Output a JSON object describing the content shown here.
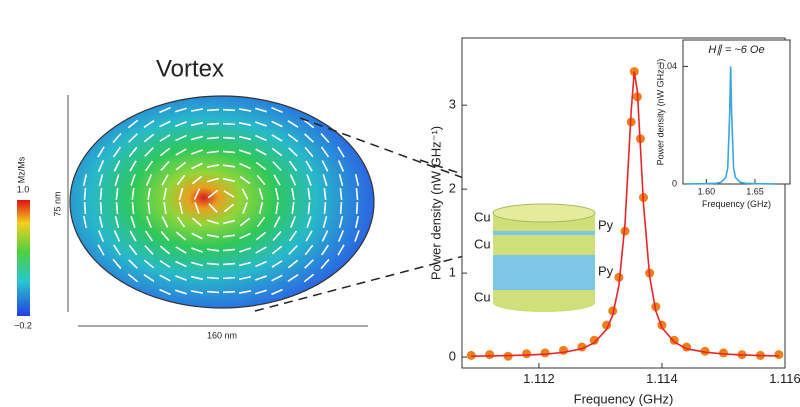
{
  "figure": {
    "panel_title": "Vortex",
    "colorbar_label": "Mz/Ms",
    "colorbar_max": "1.0",
    "colorbar_min": "−0.2",
    "height_label": "75 nm",
    "width_label": "160 nm",
    "layers": [
      "Cu",
      "Cu",
      "Cu",
      "Py",
      "Py"
    ]
  },
  "chart_data": [
    {
      "type": "line",
      "xlabel": "Frequency (GHz)",
      "ylabel": "Power density (nW GHz⁻¹)",
      "x": [
        1.1109,
        1.1112,
        1.1115,
        1.1118,
        1.1121,
        1.1124,
        1.1127,
        1.1129,
        1.1131,
        1.1132,
        1.1133,
        1.1134,
        1.1135,
        1.11355,
        1.1136,
        1.11365,
        1.1137,
        1.1138,
        1.1139,
        1.114,
        1.1142,
        1.1144,
        1.1147,
        1.115,
        1.1153,
        1.1156,
        1.1159
      ],
      "series": [
        {
          "color": "#f07f1a",
          "marker": true,
          "values": [
            0.02,
            0.03,
            0.01,
            0.04,
            0.05,
            0.08,
            0.12,
            0.2,
            0.38,
            0.55,
            0.95,
            1.5,
            2.8,
            3.4,
            3.1,
            2.6,
            1.9,
            1.0,
            0.6,
            0.38,
            0.2,
            0.12,
            0.07,
            0.05,
            0.03,
            0.02,
            0.03
          ]
        },
        {
          "color": "#e8262a",
          "marker": false,
          "values": [
            0.011,
            0.014,
            0.018,
            0.024,
            0.035,
            0.056,
            0.1,
            0.17,
            0.33,
            0.5,
            0.85,
            1.59,
            2.93,
            3.4,
            3.17,
            2.5,
            1.82,
            0.96,
            0.55,
            0.35,
            0.18,
            0.1,
            0.058,
            0.037,
            0.025,
            0.018,
            0.014
          ]
        }
      ],
      "xlim": [
        1.11075,
        1.116
      ],
      "xticks": [
        1.112,
        1.114,
        1.116
      ],
      "ylim": [
        -0.13,
        3.8
      ],
      "yticks": [
        0,
        1,
        2,
        3
      ]
    },
    {
      "type": "line",
      "title": "H∥ = ~6 Oe",
      "xlabel": "Frequency (GHz)",
      "ylabel": "Power density (nW GHz⁻¹)",
      "x": [
        1.58,
        1.6,
        1.61,
        1.615,
        1.62,
        1.622,
        1.624,
        1.625,
        1.626,
        1.628,
        1.63,
        1.635,
        1.64,
        1.65,
        1.67
      ],
      "series": [
        {
          "color": "#3aa6dd",
          "marker": false,
          "values": [
            3e-05,
            0.0001,
            0.00025,
            0.00057,
            0.0022,
            0.0055,
            0.024,
            0.04,
            0.024,
            0.0055,
            0.0022,
            0.00057,
            0.00025,
            0.0001,
            3e-05
          ]
        }
      ],
      "xlim": [
        1.576,
        1.686
      ],
      "xticks": [
        {
          "value": 1.6,
          "label": "1.60"
        },
        1.65
      ],
      "ylim": [
        0,
        0.049
      ],
      "yticks": [
        0,
        0.04
      ]
    }
  ]
}
